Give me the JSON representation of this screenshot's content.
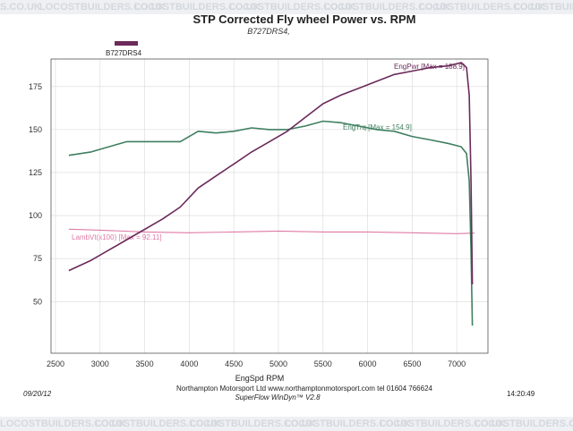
{
  "watermark": {
    "text": "LOCOSTBUILDERS.CO.UK",
    "top_prefix": "S.CO.UK"
  },
  "colors": {
    "power": "#6b2a5a",
    "torque": "#3f7f60",
    "lambda": "#e07aa5",
    "grid": "#d9d9d9",
    "legend_swatch": "#6b2a5a"
  },
  "chart_data": {
    "type": "line",
    "title": "STP Corrected Fly wheel Power vs. RPM",
    "subtitle": "B727DRS4,",
    "legend": [
      "B727DRS4"
    ],
    "xlabel": "EngSpd  RPM",
    "ylabel": "",
    "xlim": [
      2450,
      7350
    ],
    "ylim": [
      20,
      191
    ],
    "xticks": [
      2500,
      3000,
      3500,
      4000,
      4500,
      5000,
      5500,
      6000,
      6500,
      7000
    ],
    "yticks": [
      50,
      75,
      100,
      125,
      150,
      175
    ],
    "series": [
      {
        "name": "EngPwr",
        "label": "EngPwr [Max = 188.9]",
        "x": [
          2650,
          2900,
          3100,
          3300,
          3500,
          3700,
          3900,
          4100,
          4300,
          4500,
          4700,
          4900,
          5100,
          5300,
          5500,
          5700,
          5900,
          6100,
          6300,
          6500,
          6700,
          6900,
          7050,
          7110,
          7140,
          7160,
          7175
        ],
        "values": [
          68,
          74,
          80,
          86,
          92,
          98,
          105,
          116,
          123,
          130,
          137,
          143,
          149,
          157,
          165,
          170,
          174,
          178,
          182,
          184,
          186,
          187,
          188.9,
          186,
          170,
          120,
          60
        ]
      },
      {
        "name": "EngTrq",
        "label": "EngTrq [Max = 154.9]",
        "x": [
          2650,
          2900,
          3100,
          3300,
          3500,
          3700,
          3900,
          4100,
          4300,
          4500,
          4700,
          4900,
          5100,
          5300,
          5500,
          5700,
          5900,
          6100,
          6300,
          6500,
          6700,
          6900,
          7050,
          7110,
          7140,
          7160,
          7175
        ],
        "values": [
          135,
          137,
          140,
          143,
          143,
          143,
          143,
          149,
          148,
          149,
          151,
          150,
          150,
          152,
          154.9,
          154,
          152,
          150,
          149,
          146,
          144,
          142,
          140,
          136,
          120,
          80,
          36
        ]
      },
      {
        "name": "LambVt",
        "label": "LambVt(x100) [Max = 92.11]",
        "x": [
          2650,
          3000,
          3500,
          4000,
          4500,
          5000,
          5500,
          6000,
          6500,
          7000,
          7200
        ],
        "values": [
          92.1,
          91.5,
          90.5,
          90,
          90.5,
          91,
          90.5,
          90.5,
          90,
          89.5,
          89.8
        ]
      }
    ]
  },
  "footer": {
    "date": "09/20/12",
    "company": "Northampton Motorsport Ltd www.northamptonmotorsport.com tel 01604 766624",
    "software": "SuperFlow WinDyn™ V2.8",
    "time": "14:20:49"
  }
}
